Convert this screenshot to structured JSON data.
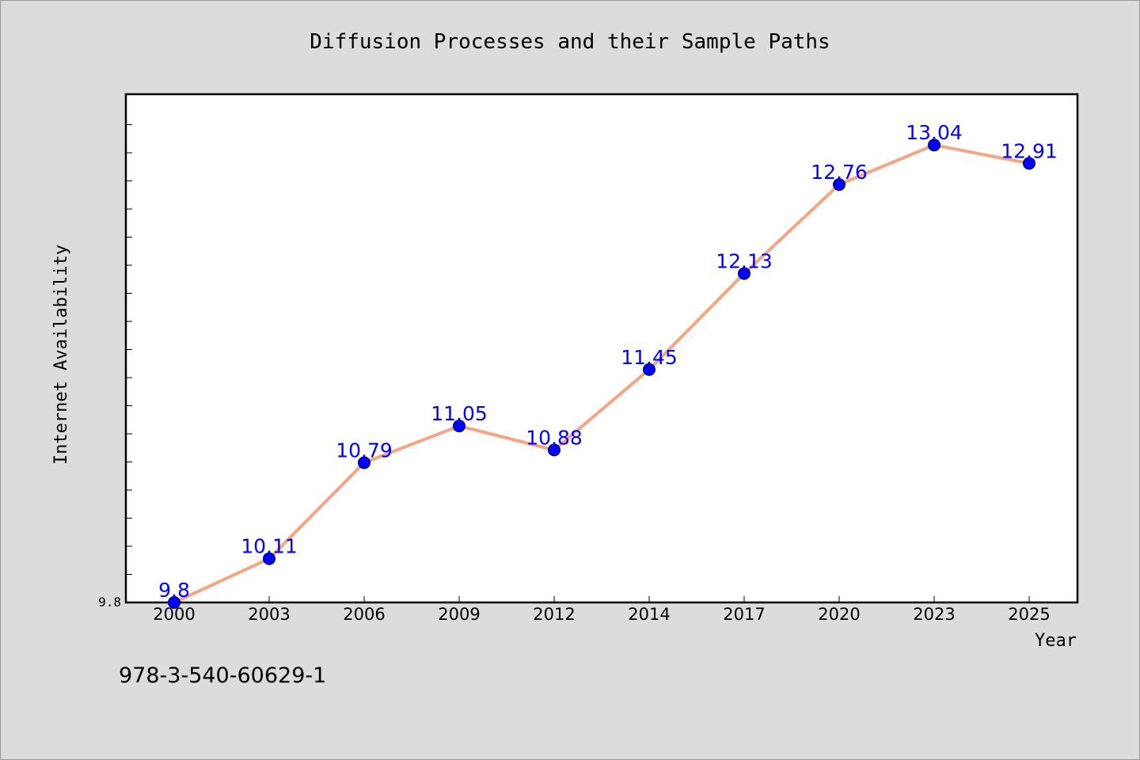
{
  "chart_data": {
    "type": "line",
    "title": "Diffusion Processes and their Sample Paths",
    "xlabel": "Year",
    "ylabel": "Internet Availability",
    "categories": [
      "2000",
      "2003",
      "2006",
      "2009",
      "2012",
      "2014",
      "2017",
      "2020",
      "2023",
      "2025"
    ],
    "series": [
      {
        "values": [
          9.8,
          10.11,
          10.79,
          11.05,
          10.88,
          11.45,
          12.13,
          12.76,
          13.04,
          12.91
        ],
        "data_labels": [
          "9.8",
          "10.11",
          "10.79",
          "11.05",
          "10.88",
          "11.45",
          "12.13",
          "12.76",
          "13.04",
          "12.91"
        ],
        "line_color": "#f4a582",
        "marker_color": "#0000ff",
        "label_color": "#0000ff"
      }
    ],
    "ylim": [
      9.8,
      13.4
    ],
    "y_tick_labels": [
      "9.8"
    ],
    "grid": false,
    "legend": "none"
  },
  "footer": {
    "code": "978-3-540-60629-1"
  },
  "colors": {
    "background": "#dcdcdc",
    "plot_background": "#ffffff",
    "line": "#f4a582",
    "marker": "#0000ff",
    "data_label": "#0000ff"
  }
}
